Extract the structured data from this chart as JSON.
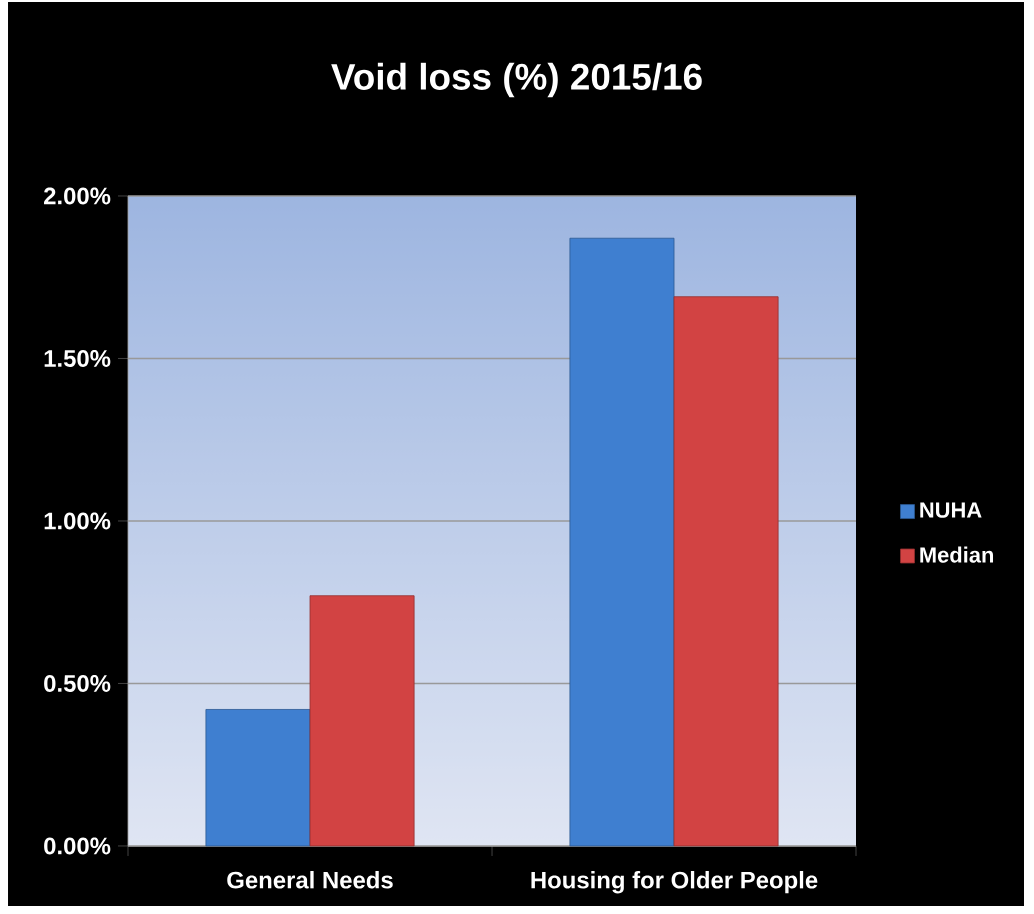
{
  "chart_data": {
    "type": "bar",
    "title": "Void loss (%) 2015/16",
    "categories": [
      "General Needs",
      "Housing for Older People"
    ],
    "series": [
      {
        "name": "NUHA",
        "color": "#3f7fd0",
        "values": [
          0.42,
          1.87
        ]
      },
      {
        "name": "Median",
        "color": "#d24343",
        "values": [
          0.77,
          1.69
        ]
      }
    ],
    "ylim": [
      0,
      2
    ],
    "yticks": [
      {
        "value": 0,
        "label": "0.00%"
      },
      {
        "value": 0.5,
        "label": "0.50%"
      },
      {
        "value": 1,
        "label": "1.00%"
      },
      {
        "value": 1.5,
        "label": "1.50%"
      },
      {
        "value": 2,
        "label": "2.00%"
      }
    ],
    "grid": "y",
    "legend": "right"
  }
}
